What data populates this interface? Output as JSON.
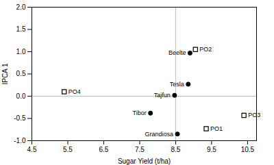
{
  "chart_data": {
    "type": "scatter",
    "xlabel": "Sugar Yield (t/ha)",
    "ylabel": "IPCA 1",
    "series": [
      {
        "marker": "circle",
        "color": "black",
        "x": [
          8.9,
          8.85,
          8.47,
          7.8,
          8.55
        ],
        "values": [
          0.97,
          0.27,
          0.02,
          -0.38,
          -0.85
        ],
        "labels": [
          "Beelte",
          "Tesla",
          "Tajfun",
          "Tibor",
          "Grandiosa"
        ]
      },
      {
        "marker": "open_square",
        "color": "black",
        "x": [
          9.05,
          5.4,
          10.4,
          9.35
        ],
        "values": [
          1.05,
          0.1,
          -0.43,
          -0.73
        ],
        "labels": [
          "PO2",
          "PO4",
          "PO3",
          "PO1"
        ]
      }
    ],
    "xlim": [
      4.5,
      10.75
    ],
    "xticks": [
      4.5,
      5.5,
      6.5,
      7.5,
      8.5,
      9.5,
      10.5
    ],
    "ylim": [
      -1.0,
      2.0
    ],
    "yticks": [
      {
        "value": -1.0,
        "label": "-1.0"
      },
      -0.5,
      {
        "value": 0,
        "label": "0.0"
      },
      0.5,
      {
        "value": 1,
        "label": "1.0"
      },
      1.5,
      {
        "value": 2,
        "label": "2.0"
      }
    ],
    "reference_lines": [
      {
        "axis": "y",
        "value": 0,
        "color": "#aaaaaa"
      },
      {
        "axis": "x",
        "value": 8.5,
        "color": "#aaaaaa"
      }
    ],
    "grid": false
  }
}
